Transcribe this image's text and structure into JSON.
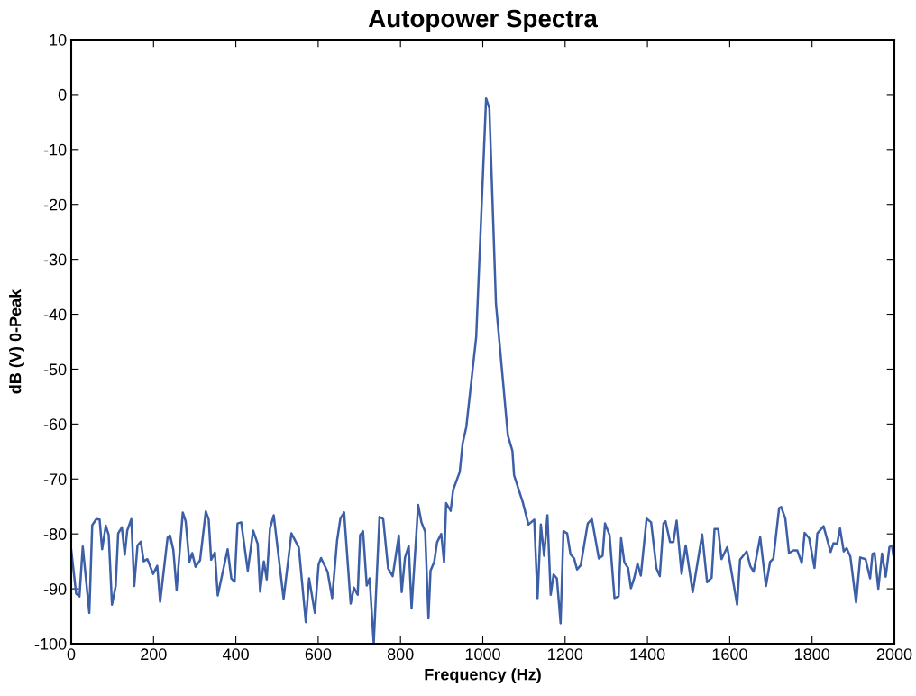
{
  "chart_data": {
    "type": "line",
    "title": "Autopower Spectra",
    "xlabel": "Frequency (Hz)",
    "ylabel": "dB (V) 0-Peak",
    "xlim": [
      0,
      2000
    ],
    "ylim": [
      -100,
      10
    ],
    "xticks": [
      0,
      200,
      400,
      600,
      800,
      1000,
      1200,
      1400,
      1600,
      1800,
      2000
    ],
    "yticks": [
      -100,
      -90,
      -80,
      -70,
      -60,
      -50,
      -40,
      -30,
      -20,
      -10,
      0,
      10
    ],
    "grid": false,
    "marker": "none",
    "line_style": "solid",
    "series": [
      {
        "color": "#3d5fa8",
        "x": [
          0,
          12,
          20,
          28,
          44,
          51,
          61,
          69,
          75,
          84,
          91,
          99,
          108,
          114,
          123,
          130,
          136,
          146,
          153,
          161,
          169,
          176,
          185,
          199,
          209,
          216,
          234,
          240,
          248,
          256,
          271,
          278,
          287,
          294,
          302,
          313,
          327,
          334,
          340,
          349,
          356,
          380,
          389,
          397,
          404,
          413,
          429,
          442,
          453,
          459,
          468,
          475,
          483,
          492,
          516,
          535,
          553,
          570,
          578,
          592,
          601,
          607,
          623,
          634,
          646,
          654,
          663,
          679,
          687,
          696,
          702,
          709,
          718,
          725,
          735,
          749,
          758,
          770,
          781,
          796,
          803,
          811,
          820,
          827,
          843,
          851,
          860,
          868,
          873,
          882,
          889,
          899,
          906,
          911,
          922,
          928,
          944,
          951,
          960,
          984,
          1008,
          1016,
          1032,
          1061,
          1072,
          1076,
          1097,
          1111,
          1125,
          1133,
          1141,
          1149,
          1157,
          1165,
          1172,
          1180,
          1189,
          1196,
          1205,
          1213,
          1222,
          1229,
          1238,
          1255,
          1265,
          1282,
          1291,
          1297,
          1308,
          1320,
          1330,
          1336,
          1344,
          1353,
          1360,
          1368,
          1376,
          1384,
          1398,
          1409,
          1422,
          1430,
          1439,
          1444,
          1455,
          1463,
          1471,
          1483,
          1493,
          1510,
          1533,
          1545,
          1556,
          1563,
          1572,
          1580,
          1594,
          1618,
          1625,
          1641,
          1650,
          1658,
          1674,
          1688,
          1698,
          1706,
          1720,
          1725,
          1735,
          1744,
          1755,
          1764,
          1775,
          1782,
          1793,
          1806,
          1813,
          1828,
          1845,
          1852,
          1861,
          1868,
          1877,
          1884,
          1893,
          1907,
          1917,
          1930,
          1941,
          1947,
          1952,
          1961,
          1970,
          1979,
          1988,
          1994,
          2000
        ],
        "values": [
          -82.9,
          -90.9,
          -91.4,
          -82.3,
          -94.4,
          -78.4,
          -77.3,
          -77.4,
          -82.8,
          -78.5,
          -80.2,
          -92.9,
          -89.5,
          -79.9,
          -78.8,
          -83.8,
          -79.4,
          -77.3,
          -89.5,
          -82.1,
          -81.4,
          -85,
          -84.6,
          -87.3,
          -85.8,
          -92.4,
          -80.7,
          -80.3,
          -82.9,
          -90.2,
          -76.1,
          -77.7,
          -85.1,
          -83.5,
          -86,
          -84.8,
          -75.9,
          -77.4,
          -84.7,
          -83.4,
          -91.2,
          -82.8,
          -88.1,
          -88.7,
          -78.1,
          -77.9,
          -86.7,
          -79.4,
          -81.8,
          -90.5,
          -85,
          -88.3,
          -79,
          -76.6,
          -91.8,
          -79.9,
          -82.5,
          -96.1,
          -88.1,
          -94.4,
          -85.6,
          -84.4,
          -86.9,
          -91.7,
          -81.2,
          -77.2,
          -76.1,
          -92.7,
          -89.8,
          -91.1,
          -80.2,
          -79.5,
          -89.4,
          -88.1,
          -100,
          -76.9,
          -77.3,
          -86.3,
          -87.7,
          -80.3,
          -90.6,
          -84.3,
          -82.2,
          -93.6,
          -74.7,
          -77.9,
          -79.6,
          -95.4,
          -86.7,
          -85.1,
          -81.5,
          -80,
          -85.2,
          -74.4,
          -75.8,
          -72,
          -68.7,
          -63.5,
          -60.5,
          -44.1,
          -0.7,
          -2.5,
          -38.1,
          -62.1,
          -64.9,
          -69.3,
          -74.2,
          -78.3,
          -77.4,
          -91.7,
          -78.3,
          -84,
          -76.6,
          -91.1,
          -87.4,
          -88.1,
          -96.3,
          -79.5,
          -79.9,
          -83.7,
          -84.5,
          -86.5,
          -85.7,
          -78.1,
          -77.3,
          -84.5,
          -84,
          -78.1,
          -80.2,
          -91.7,
          -91.4,
          -80.8,
          -85.2,
          -86.2,
          -89.9,
          -88,
          -85.4,
          -87.6,
          -77.2,
          -77.9,
          -86.3,
          -87.7,
          -78.1,
          -77.7,
          -81.5,
          -81.5,
          -77.6,
          -87.3,
          -82.1,
          -90.6,
          -80.1,
          -88.8,
          -88,
          -79.1,
          -79.1,
          -84.6,
          -82.4,
          -92.9,
          -84.7,
          -83.2,
          -85.9,
          -86.9,
          -80.6,
          -89.5,
          -85.1,
          -84.5,
          -75.3,
          -75.1,
          -77.2,
          -83.5,
          -83,
          -83,
          -85.3,
          -79.8,
          -80.8,
          -86.2,
          -79.9,
          -78.6,
          -83.3,
          -81.7,
          -81.8,
          -79,
          -83.2,
          -82.6,
          -84.1,
          -92.5,
          -84.3,
          -84.6,
          -88.1,
          -83.6,
          -83.5,
          -90,
          -83.6,
          -87.8,
          -82.4,
          -82.1,
          -85.1
        ]
      }
    ]
  }
}
